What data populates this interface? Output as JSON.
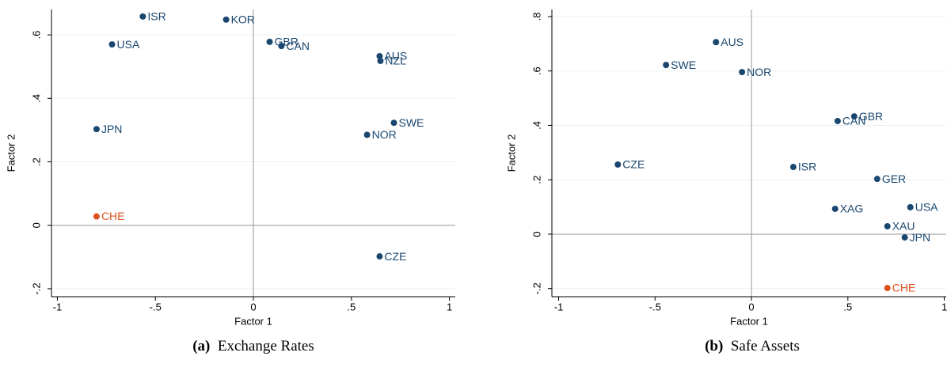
{
  "chart_data": [
    {
      "type": "scatter",
      "caption_tag": "(a)",
      "caption": "Exchange Rates",
      "xlabel": "Factor 1",
      "ylabel": "Factor 2",
      "xlim": [
        -1.03,
        1.03
      ],
      "ylim": [
        -0.225,
        0.68
      ],
      "xticks": [
        {
          "value": -1,
          "label": "-1"
        },
        {
          "value": -0.5,
          "label": "-.5"
        },
        0,
        {
          "value": 0.5,
          "label": ".5"
        },
        1
      ],
      "yticks": [
        {
          "value": -0.2,
          "label": "-.2"
        },
        0,
        {
          "value": 0.2,
          "label": ".2"
        },
        {
          "value": 0.4,
          "label": ".4"
        },
        {
          "value": 0.6,
          "label": ".6"
        }
      ],
      "grid": true,
      "xline": 0,
      "yline": 0,
      "points": [
        {
          "label": "ISR",
          "x": -0.564,
          "y": 0.658,
          "color": "#1a476f"
        },
        {
          "label": "KOR",
          "x": -0.139,
          "y": 0.648,
          "color": "#1a476f"
        },
        {
          "label": "USA",
          "x": -0.721,
          "y": 0.57,
          "color": "#1a476f"
        },
        {
          "label": "GBR",
          "x": 0.083,
          "y": 0.578,
          "color": "#1a476f"
        },
        {
          "label": "CAN",
          "x": 0.143,
          "y": 0.565,
          "color": "#1a476f"
        },
        {
          "label": "AUS",
          "x": 0.644,
          "y": 0.533,
          "color": "#1a476f"
        },
        {
          "label": "NZL",
          "x": 0.648,
          "y": 0.518,
          "color": "#1a476f"
        },
        {
          "label": "JPN",
          "x": -0.8,
          "y": 0.303,
          "color": "#1a476f"
        },
        {
          "label": "SWE",
          "x": 0.717,
          "y": 0.323,
          "color": "#1a476f"
        },
        {
          "label": "NOR",
          "x": 0.58,
          "y": 0.285,
          "color": "#1a476f"
        },
        {
          "label": "CHE",
          "x": -0.8,
          "y": 0.028,
          "color": "#e0521b"
        },
        {
          "label": "CZE",
          "x": 0.644,
          "y": -0.098,
          "color": "#1a476f"
        }
      ]
    },
    {
      "type": "scatter",
      "caption_tag": "(b)",
      "caption": "Safe Assets",
      "xlabel": "Factor 1",
      "ylabel": "Factor 2",
      "xlim": [
        -1.035,
        1.01
      ],
      "ylim": [
        -0.23,
        0.826
      ],
      "xticks": [
        {
          "value": -1,
          "label": "-1"
        },
        {
          "value": -0.5,
          "label": "-.5"
        },
        0,
        {
          "value": 0.5,
          "label": ".5"
        },
        1
      ],
      "yticks": [
        {
          "value": -0.2,
          "label": "-.2"
        },
        0,
        {
          "value": 0.2,
          "label": ".2"
        },
        {
          "value": 0.4,
          "label": ".4"
        },
        {
          "value": 0.6,
          "label": ".6"
        },
        {
          "value": 0.8,
          "label": ".8"
        }
      ],
      "grid": true,
      "xline": 0,
      "yline": 0,
      "points": [
        {
          "label": "AUS",
          "x": -0.184,
          "y": 0.706,
          "color": "#1a476f"
        },
        {
          "label": "SWE",
          "x": -0.443,
          "y": 0.622,
          "color": "#1a476f"
        },
        {
          "label": "NOR",
          "x": -0.049,
          "y": 0.596,
          "color": "#1a476f"
        },
        {
          "label": "GBR",
          "x": 0.533,
          "y": 0.433,
          "color": "#1a476f"
        },
        {
          "label": "CAN",
          "x": 0.447,
          "y": 0.416,
          "color": "#1a476f"
        },
        {
          "label": "CZE",
          "x": -0.693,
          "y": 0.256,
          "color": "#1a476f"
        },
        {
          "label": "ISR",
          "x": 0.217,
          "y": 0.247,
          "color": "#1a476f"
        },
        {
          "label": "GER",
          "x": 0.652,
          "y": 0.203,
          "color": "#1a476f"
        },
        {
          "label": "USA",
          "x": 0.824,
          "y": 0.099,
          "color": "#1a476f"
        },
        {
          "label": "XAG",
          "x": 0.434,
          "y": 0.093,
          "color": "#1a476f"
        },
        {
          "label": "XAU",
          "x": 0.705,
          "y": 0.029,
          "color": "#1a476f"
        },
        {
          "label": "JPN",
          "x": 0.795,
          "y": -0.012,
          "color": "#1a476f"
        },
        {
          "label": "CHE",
          "x": 0.705,
          "y": -0.198,
          "color": "#e0521b"
        }
      ]
    }
  ]
}
